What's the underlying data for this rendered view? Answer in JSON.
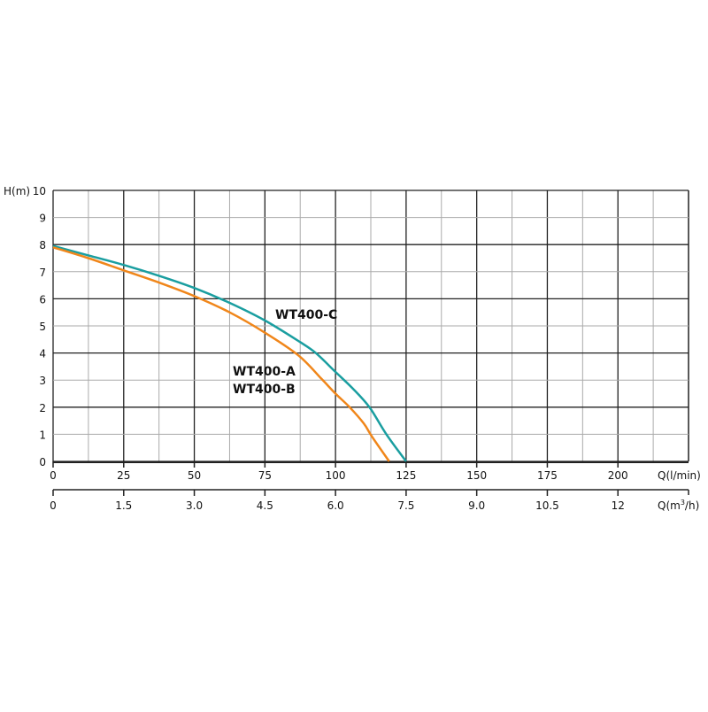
{
  "chart_data": {
    "type": "line",
    "ylabel": "H(m)",
    "xlabel": "Q(l/min)",
    "xlabel2": "Q(m³/h)",
    "xlabel2_parts": {
      "pre": "Q(m",
      "sup": "3",
      "post": "/h)"
    },
    "xlim": [
      0,
      225
    ],
    "ylim": [
      0,
      10
    ],
    "grid": true,
    "x_ticks": [
      0,
      25,
      50,
      75,
      100,
      125,
      150,
      175,
      200
    ],
    "x_tick_labels": [
      "0",
      "25",
      "50",
      "75",
      "100",
      "125",
      "150",
      "175",
      "200"
    ],
    "x2_tick_labels": [
      "0",
      "1.5",
      "3.0",
      "4.5",
      "6.0",
      "7.5",
      "9.0",
      "10.5",
      "12"
    ],
    "y_ticks": [
      0,
      1,
      2,
      3,
      4,
      5,
      6,
      7,
      8,
      9,
      10
    ],
    "y_tick_labels": [
      "0",
      "1",
      "2",
      "3",
      "4",
      "5",
      "6",
      "7",
      "8",
      "9",
      "10"
    ],
    "series": [
      {
        "name": "WT400-C",
        "color": "#1a9ea0",
        "x": [
          0,
          12.5,
          25,
          37.5,
          50,
          62.5,
          75,
          87.5,
          93,
          100,
          106,
          112,
          118,
          125
        ],
        "y": [
          7.95,
          7.6,
          7.25,
          6.85,
          6.4,
          5.85,
          5.2,
          4.4,
          4.0,
          3.3,
          2.7,
          2.0,
          1.0,
          0
        ]
      },
      {
        "name": "WT400-A / WT400-B",
        "color": "#f0861a",
        "x": [
          0,
          12.5,
          25,
          37.5,
          50,
          62.5,
          75,
          87,
          95,
          100,
          105,
          110,
          113,
          119
        ],
        "y": [
          7.9,
          7.5,
          7.05,
          6.6,
          6.1,
          5.5,
          4.75,
          3.9,
          3.05,
          2.5,
          2.0,
          1.4,
          0.9,
          0
        ]
      }
    ],
    "annotations": [
      "WT400-C",
      "WT400-A",
      "WT400-B"
    ]
  }
}
